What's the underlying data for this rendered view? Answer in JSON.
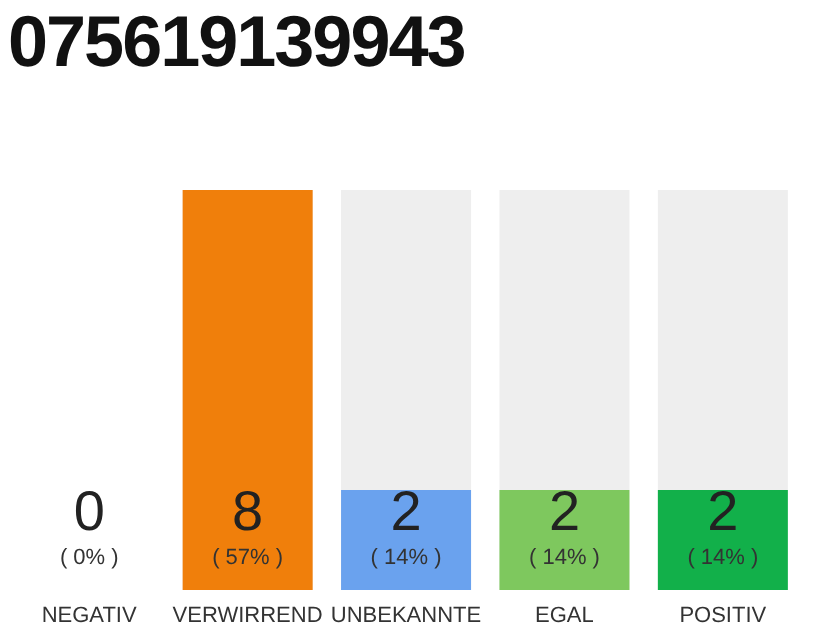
{
  "chart_data": {
    "type": "bar",
    "title": "075619139943",
    "categories": [
      "NEGATIV",
      "VERWIRREND",
      "UNBEKANNTE",
      "EGAL",
      "POSITIV"
    ],
    "values": [
      0,
      8,
      2,
      2,
      2
    ],
    "colors": [
      "#333333",
      "#f07f0b",
      "#6aa2ee",
      "#7ec85e",
      "#12b04a"
    ],
    "data_labels": true,
    "annotations": [
      "( 0% )",
      "( 57% )",
      "( 14% )",
      "( 14% )",
      "( 14% )"
    ]
  }
}
